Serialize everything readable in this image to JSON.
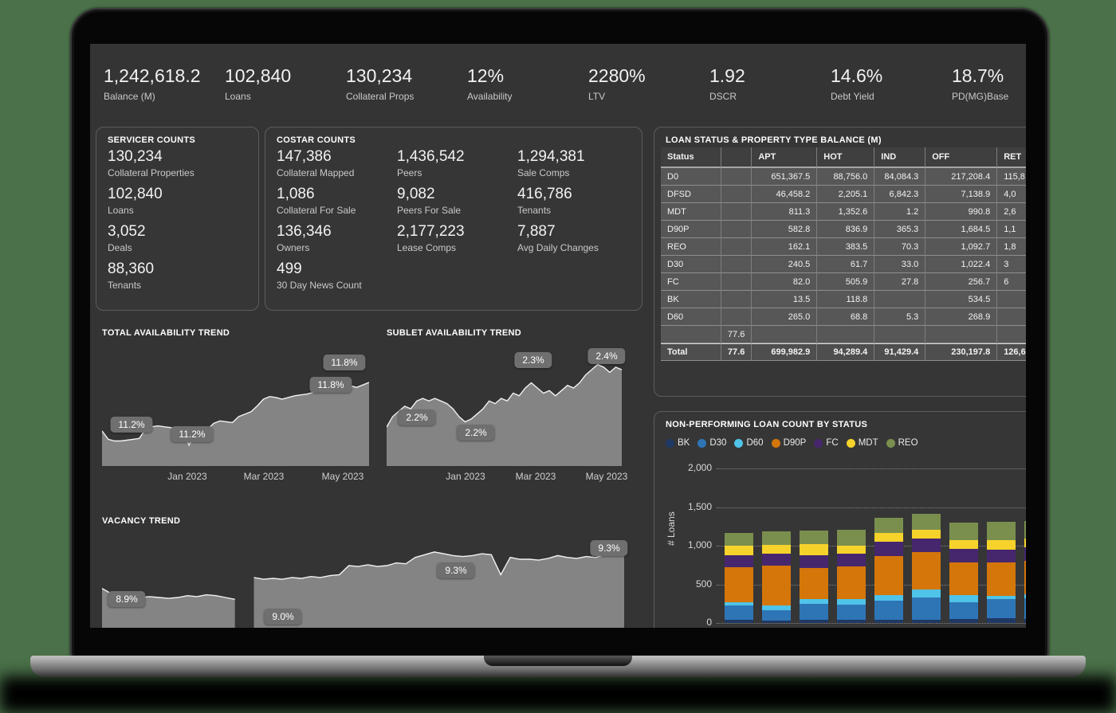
{
  "page_background": "#4a7149",
  "dashboard_background": "#343434",
  "kpis": [
    {
      "value": "1,242,618.2",
      "label": "Balance (M)"
    },
    {
      "value": "102,840",
      "label": "Loans"
    },
    {
      "value": "130,234",
      "label": "Collateral Props"
    },
    {
      "value": "12%",
      "label": "Availability"
    },
    {
      "value": "2280%",
      "label": "LTV"
    },
    {
      "value": "1.92",
      "label": "DSCR"
    },
    {
      "value": "14.6%",
      "label": "Debt Yield"
    },
    {
      "value": "18.7%",
      "label": "PD(MG)Base"
    }
  ],
  "servicer_panel": {
    "title": "SERVICER COUNTS",
    "metrics": [
      {
        "value": "130,234",
        "label": "Collateral Properties"
      },
      {
        "value": "102,840",
        "label": "Loans"
      },
      {
        "value": "3,052",
        "label": "Deals"
      },
      {
        "value": "88,360",
        "label": "Tenants"
      }
    ]
  },
  "costar_panel": {
    "title": "COSTAR COUNTS",
    "metrics": [
      {
        "value": "147,386",
        "label": "Collateral Mapped",
        "col": 0,
        "row": 0
      },
      {
        "value": "1,436,542",
        "label": "Peers",
        "col": 1,
        "row": 0
      },
      {
        "value": "1,294,381",
        "label": "Sale Comps",
        "col": 2,
        "row": 0
      },
      {
        "value": "1,086",
        "label": "Collateral For Sale",
        "col": 0,
        "row": 1
      },
      {
        "value": "9,082",
        "label": "Peers For Sale",
        "col": 1,
        "row": 1
      },
      {
        "value": "416,786",
        "label": "Tenants",
        "col": 2,
        "row": 1
      },
      {
        "value": "136,346",
        "label": "Owners",
        "col": 0,
        "row": 2
      },
      {
        "value": "2,177,223",
        "label": "Lease Comps",
        "col": 1,
        "row": 2
      },
      {
        "value": "7,887",
        "label": "Avg Daily Changes",
        "col": 2,
        "row": 2
      },
      {
        "value": "499",
        "label": "30 Day News Count",
        "col": 0,
        "row": 3
      }
    ]
  },
  "loan_table": {
    "title": "LOAN STATUS & PROPERTY TYPE BALANCE (M)",
    "columns": [
      "Status",
      "",
      "APT",
      "HOT",
      "IND",
      "OFF",
      "RET"
    ],
    "rows": [
      [
        "D0",
        "",
        "651,367.5",
        "88,756.0",
        "84,084.3",
        "217,208.4",
        "115,8"
      ],
      [
        "DFSD",
        "",
        "46,458.2",
        "2,205.1",
        "6,842.3",
        "7,138.9",
        "4,0"
      ],
      [
        "MDT",
        "",
        "811.3",
        "1,352.6",
        "1.2",
        "990.8",
        "2,6"
      ],
      [
        "D90P",
        "",
        "582.8",
        "836.9",
        "365.3",
        "1,684.5",
        "1,1"
      ],
      [
        "REO",
        "",
        "162.1",
        "383.5",
        "70.3",
        "1,092.7",
        "1,8"
      ],
      [
        "D30",
        "",
        "240.5",
        "61.7",
        "33.0",
        "1,022.4",
        "3"
      ],
      [
        "FC",
        "",
        "82.0",
        "505.9",
        "27.8",
        "256.7",
        "6"
      ],
      [
        "BK",
        "",
        "13.5",
        "118.8",
        "",
        "534.5",
        ""
      ],
      [
        "D60",
        "",
        "265.0",
        "68.8",
        "5.3",
        "268.9",
        ""
      ],
      [
        "",
        "77.6",
        "",
        "",
        "",
        "",
        ""
      ]
    ],
    "total_row": [
      "Total",
      "77.6",
      "699,982.9",
      "94,289.4",
      "91,429.4",
      "230,197.8",
      "126,6"
    ]
  },
  "chart_data": [
    {
      "type": "area",
      "title": "TOTAL AVAILABILITY TREND",
      "ylim": [
        10.8,
        12.2
      ],
      "fill_color": "#8f8f8f",
      "line_color": "#f2f2f2",
      "x_ticks": [
        {
          "label": "Jan 2023",
          "x": 107
        },
        {
          "label": "Mar 2023",
          "x": 203
        },
        {
          "label": "May 2023",
          "x": 302
        }
      ],
      "annotations": [
        {
          "label": "11.2%",
          "x": 37,
          "y": 121
        },
        {
          "label": "11.2%",
          "x": 113,
          "y": 133
        },
        {
          "label": "11.8%",
          "x": 304,
          "y": 43
        },
        {
          "label": "11.8%",
          "x": 287,
          "y": 71
        }
      ],
      "values": [
        11.22,
        11.12,
        11.1,
        11.1,
        11.11,
        11.12,
        11.13,
        11.24,
        11.27,
        11.28,
        11.27,
        11.26,
        11.25,
        11.24,
        11.05,
        11.19,
        11.22,
        11.24,
        11.31,
        11.34,
        11.33,
        11.32,
        11.39,
        11.42,
        11.45,
        11.52,
        11.6,
        11.63,
        11.62,
        11.6,
        11.62,
        11.64,
        11.65,
        11.66,
        11.68,
        11.7,
        11.73,
        11.77,
        11.8,
        11.85,
        11.76,
        11.74,
        11.77,
        11.8
      ]
    },
    {
      "type": "area",
      "title": "SUBLET AVAILABILITY TREND",
      "ylim": [
        2.05,
        2.5
      ],
      "fill_color": "#8f8f8f",
      "line_color": "#f2f2f2",
      "x_ticks": [
        {
          "label": "Jan 2023",
          "x": 99
        },
        {
          "label": "Mar 2023",
          "x": 187
        },
        {
          "label": "May 2023",
          "x": 276
        }
      ],
      "annotations": [
        {
          "label": "2.2%",
          "x": 38,
          "y": 112
        },
        {
          "label": "2.2%",
          "x": 112,
          "y": 131
        },
        {
          "label": "2.3%",
          "x": 184,
          "y": 40
        },
        {
          "label": "2.4%",
          "x": 276,
          "y": 35
        }
      ],
      "values": [
        2.2,
        2.24,
        2.26,
        2.28,
        2.27,
        2.3,
        2.31,
        2.3,
        2.31,
        2.3,
        2.29,
        2.27,
        2.24,
        2.22,
        2.23,
        2.25,
        2.27,
        2.3,
        2.29,
        2.31,
        2.3,
        2.33,
        2.32,
        2.35,
        2.37,
        2.35,
        2.33,
        2.34,
        2.32,
        2.34,
        2.36,
        2.35,
        2.37,
        2.4,
        2.42,
        2.44,
        2.43,
        2.41,
        2.43,
        2.42
      ]
    },
    {
      "type": "area",
      "title": "VACANCY TREND",
      "ylim": [
        8.45,
        9.5
      ],
      "fill_color": "#8f8f8f",
      "line_color": "#f2f2f2",
      "x_ticks": [],
      "annotations": [
        {
          "label": "8.9%",
          "x": 31,
          "y": 104
        },
        {
          "label": "9.0%",
          "x": 227,
          "y": 126
        },
        {
          "label": "9.3%",
          "x": 444,
          "y": 68
        },
        {
          "label": "9.3%",
          "x": 636,
          "y": 40
        }
      ],
      "values": [
        8.9,
        8.84,
        8.82,
        8.8,
        8.8,
        8.81,
        8.8,
        8.79,
        8.8,
        8.82,
        8.81,
        8.83,
        8.82,
        8.8,
        8.78,
        null,
        9.02,
        9.0,
        9.01,
        9.0,
        9.02,
        9.01,
        9.03,
        9.02,
        9.04,
        9.05,
        9.15,
        9.14,
        9.16,
        9.14,
        9.15,
        9.18,
        9.17,
        9.24,
        9.27,
        9.3,
        9.28,
        9.26,
        9.25,
        9.26,
        9.28,
        9.27,
        9.05,
        9.24,
        9.22,
        9.22,
        9.21,
        9.23,
        9.26,
        9.24,
        9.23,
        9.25,
        9.24,
        9.27,
        9.33,
        9.35
      ]
    },
    {
      "type": "bar",
      "title": "NON-PERFORMING LOAN COUNT BY STATUS",
      "ylabel": "# Loans",
      "ylim": [
        0,
        2000
      ],
      "yticks": [
        {
          "value": 0,
          "label": "0"
        },
        {
          "value": 500,
          "label": "500"
        },
        {
          "value": 1000,
          "label": "1,000"
        },
        {
          "value": 1500,
          "label": "1,500"
        },
        {
          "value": 2000,
          "label": "2,000"
        }
      ],
      "legend_position": "top",
      "grid": "dotted",
      "series": [
        {
          "name": "BK",
          "color": "#1f3864",
          "values": [
            40,
            35,
            40,
            45,
            40,
            45,
            55,
            60,
            55
          ]
        },
        {
          "name": "D30",
          "color": "#2e75b6",
          "values": [
            190,
            130,
            210,
            195,
            250,
            290,
            215,
            250,
            260
          ]
        },
        {
          "name": "D60",
          "color": "#4fc3e8",
          "values": [
            40,
            65,
            55,
            70,
            70,
            100,
            90,
            45,
            60
          ]
        },
        {
          "name": "D90P",
          "color": "#d4760a",
          "values": [
            450,
            510,
            405,
            425,
            505,
            480,
            420,
            425,
            430
          ]
        },
        {
          "name": "FC",
          "color": "#46276e",
          "values": [
            160,
            160,
            165,
            165,
            185,
            175,
            175,
            170,
            170
          ]
        },
        {
          "name": "MDT",
          "color": "#f6d32b",
          "values": [
            115,
            110,
            145,
            105,
            110,
            115,
            115,
            120,
            115
          ]
        },
        {
          "name": "REO",
          "color": "#7a8f4e",
          "values": [
            175,
            180,
            180,
            205,
            200,
            205,
            230,
            240,
            230
          ]
        }
      ]
    }
  ]
}
